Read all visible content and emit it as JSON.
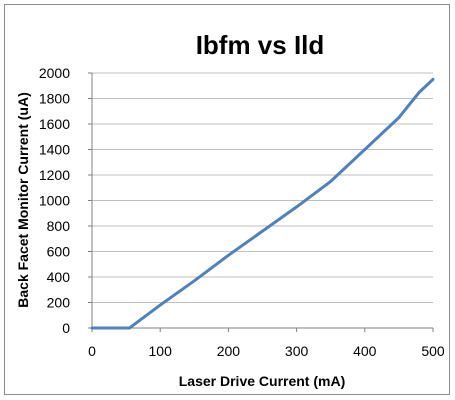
{
  "chart_data": {
    "type": "line",
    "title": "Ibfm vs Ild",
    "xlabel": "Laser Drive Current (mA)",
    "ylabel": "Back Facet Monitor Current (uA)",
    "xlim": [
      0,
      500
    ],
    "ylim": [
      0,
      2000
    ],
    "x_ticks": [
      "0",
      "100",
      "200",
      "300",
      "400",
      "500"
    ],
    "y_ticks": [
      "0",
      "200",
      "400",
      "600",
      "800",
      "1000",
      "1200",
      "1400",
      "1600",
      "1800",
      "2000"
    ],
    "grid": "horizontal",
    "legend": "none",
    "series": [
      {
        "color": "#4f81bd",
        "points": [
          [
            0,
            0
          ],
          [
            55,
            0
          ],
          [
            60,
            20
          ],
          [
            100,
            180
          ],
          [
            150,
            370
          ],
          [
            200,
            570
          ],
          [
            250,
            760
          ],
          [
            300,
            950
          ],
          [
            350,
            1150
          ],
          [
            400,
            1400
          ],
          [
            450,
            1650
          ],
          [
            480,
            1850
          ],
          [
            500,
            1950
          ]
        ]
      }
    ]
  }
}
